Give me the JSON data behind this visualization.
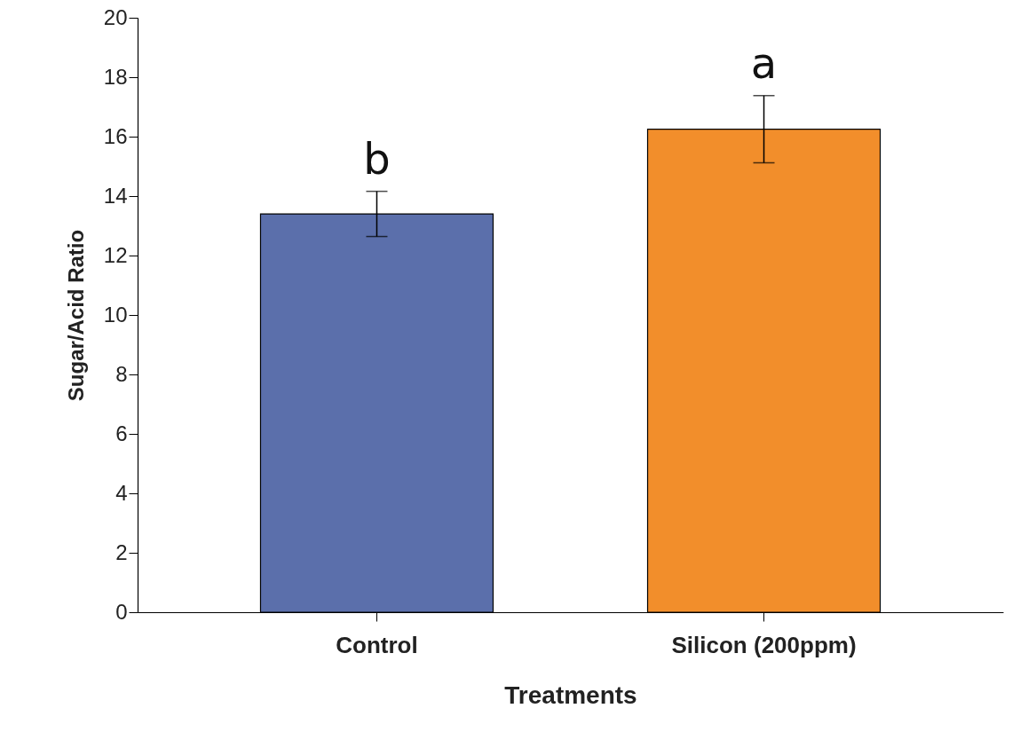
{
  "chart_data": {
    "type": "bar",
    "xlabel": "Treatments",
    "ylabel": "Sugar/Acid Ratio",
    "categories": [
      "Control",
      "Silicon (200ppm)"
    ],
    "values": [
      13.4,
      16.25
    ],
    "colors": [
      "#5b6fab",
      "#f28e2b"
    ],
    "errors": [
      0.76,
      1.13
    ],
    "ylim": [
      0,
      20
    ],
    "yticks": [
      0,
      2,
      4,
      6,
      8,
      10,
      12,
      14,
      16,
      18,
      20
    ],
    "annotations": [
      "b",
      "a"
    ]
  }
}
